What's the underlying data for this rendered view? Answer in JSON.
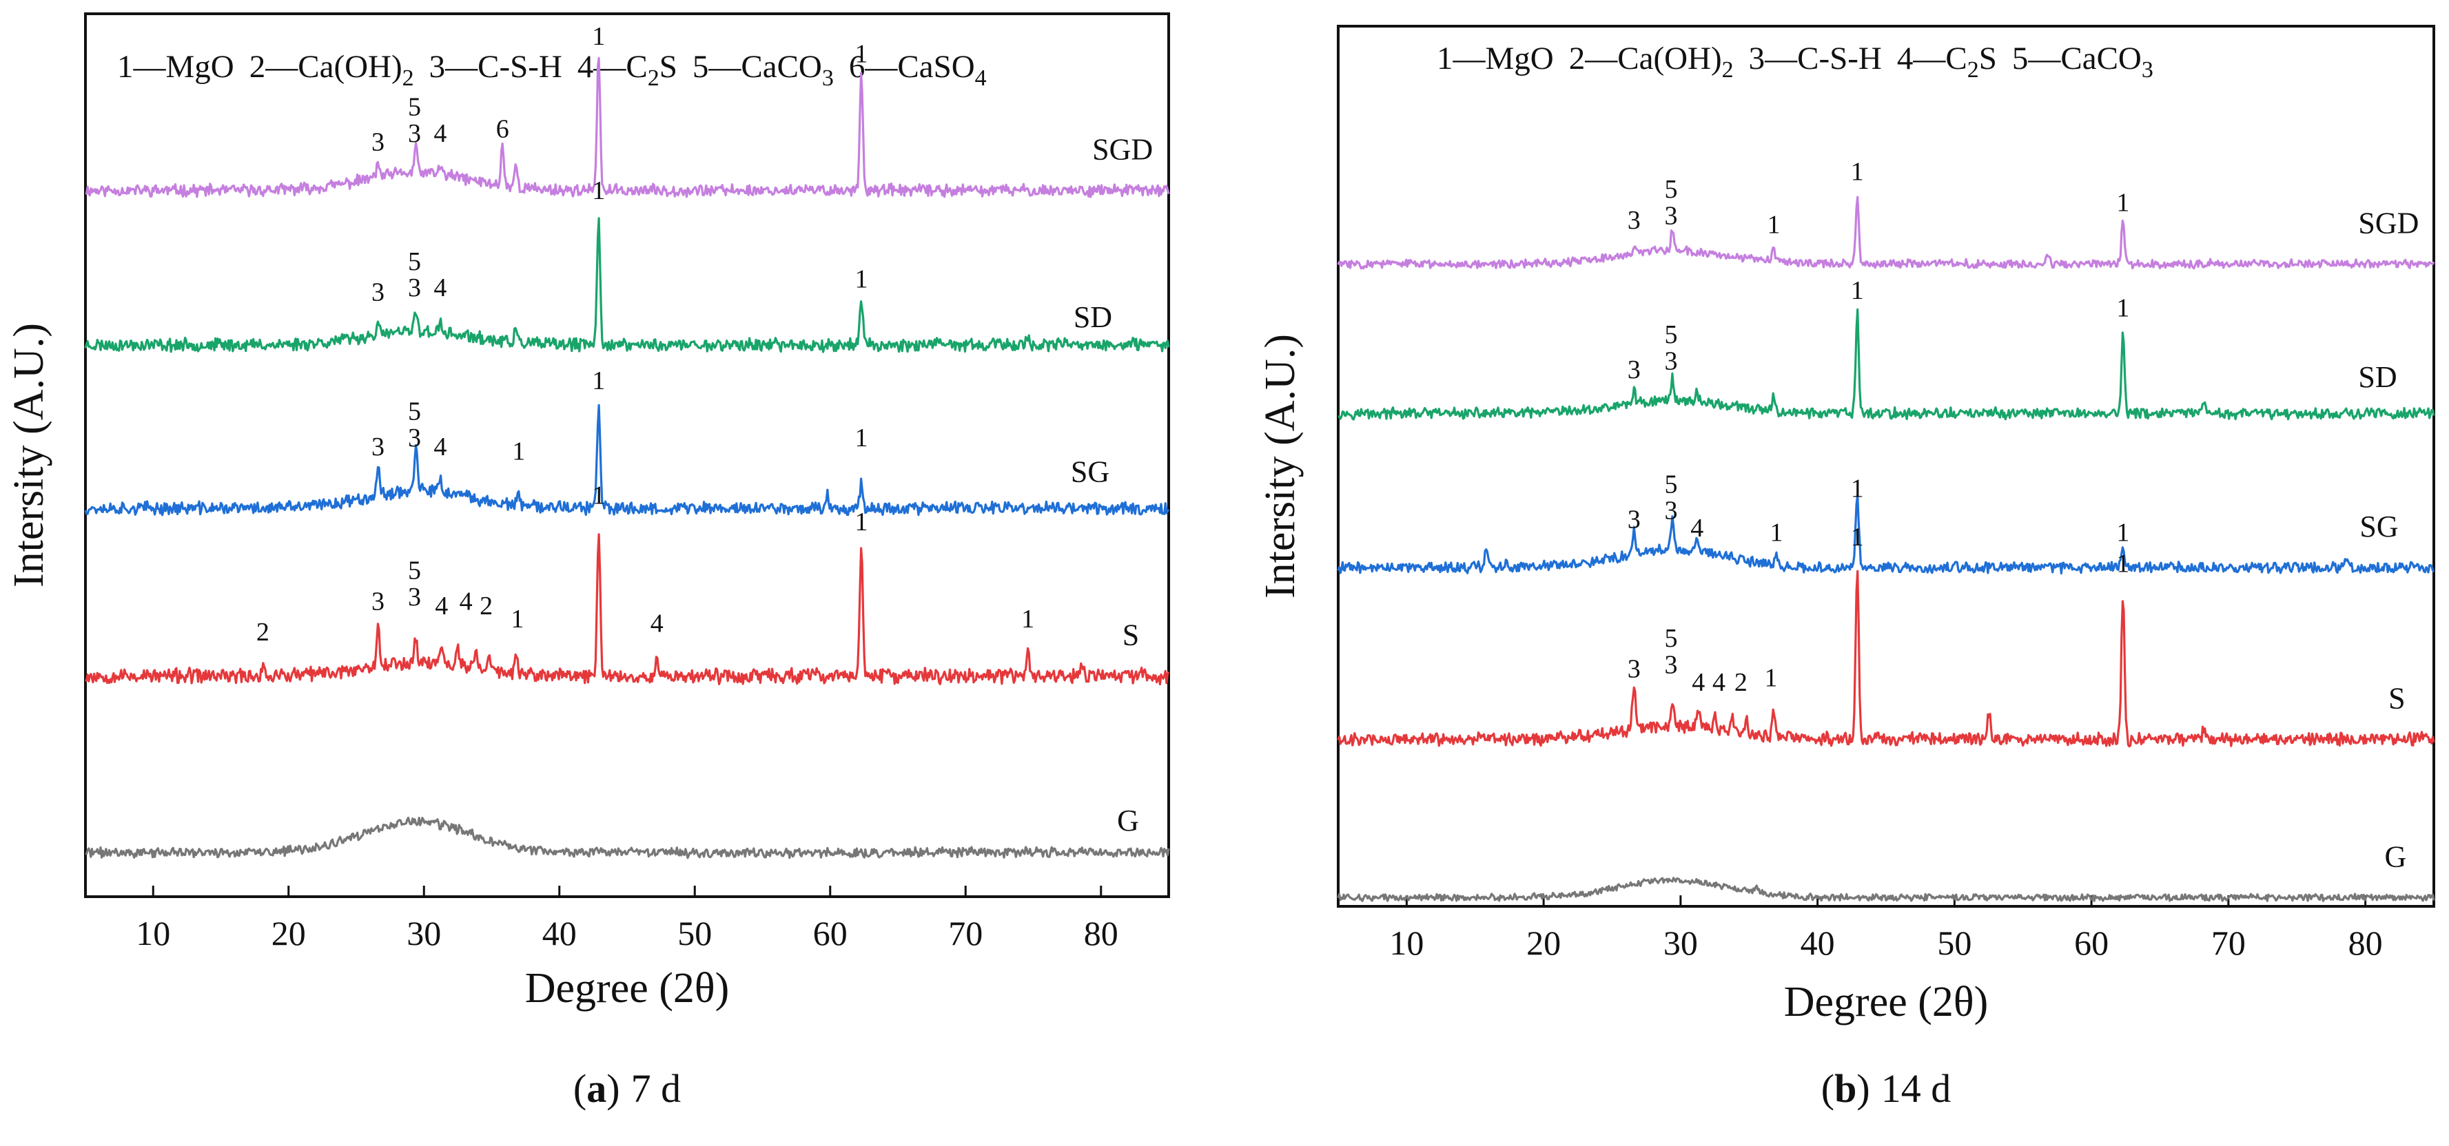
{
  "figure": {
    "background": "#ffffff",
    "axis_color": "#111111"
  },
  "colors": {
    "SGD": "#c57fdf",
    "SD": "#19a46a",
    "SG": "#1f6fd6",
    "S": "#e5383b",
    "G": "#777777"
  },
  "chart_data": [
    {
      "id": "a",
      "type": "line",
      "caption_bold": "a",
      "caption_rest": "7 d",
      "caption_open": "(",
      "caption_close": ")",
      "xlabel": "Degree (2θ)",
      "ylabel": "Intersity (A.U.)",
      "xlim": [
        5,
        85
      ],
      "ylim": [
        0,
        100
      ],
      "xticks": [
        10,
        20,
        30,
        40,
        50,
        60,
        70,
        80
      ],
      "legend": {
        "location": "top",
        "items": [
          {
            "n": "1",
            "sep": "—",
            "main": "MgO",
            "sub": ""
          },
          {
            "n": "2",
            "sep": "—",
            "main": "Ca(OH)",
            "sub": "2"
          },
          {
            "n": "3",
            "sep": "—",
            "main": "C-S-H",
            "sub": ""
          },
          {
            "n": "4",
            "sep": "—",
            "main": "C",
            "sub": "2",
            "tail": "S"
          },
          {
            "n": "5",
            "sep": "—",
            "main": "CaCO",
            "sub": "3"
          },
          {
            "n": "6",
            "sep": "—",
            "main": "CaSO",
            "sub": "4"
          }
        ]
      },
      "series": [
        {
          "name": "SGD",
          "baseline": 80.0,
          "hump": 2.0,
          "noise": 0.55,
          "seed": 11,
          "peaks": [
            [
              26.6,
              1.5
            ],
            [
              29.4,
              3.0
            ],
            [
              31.2,
              1.0
            ],
            [
              35.8,
              4.5
            ],
            [
              36.8,
              2.5
            ],
            [
              42.9,
              15.5
            ],
            [
              62.3,
              13.5
            ]
          ],
          "labels": [
            {
              "x": 26.6,
              "y": 84.5,
              "text": "3"
            },
            {
              "x": 29.3,
              "y": 88.5,
              "text": "5"
            },
            {
              "x": 29.3,
              "y": 85.5,
              "text": "3"
            },
            {
              "x": 31.2,
              "y": 85.5,
              "text": "4"
            },
            {
              "x": 35.8,
              "y": 86.0,
              "text": "6"
            },
            {
              "x": 42.9,
              "y": 96.5,
              "text": "1"
            },
            {
              "x": 62.3,
              "y": 94.5,
              "text": "1"
            },
            {
              "x": 81.6,
              "y": 83.5,
              "text": "SGD",
              "series_label": true
            }
          ]
        },
        {
          "name": "SD",
          "baseline": 62.5,
          "hump": 1.5,
          "noise": 0.6,
          "seed": 23,
          "peaks": [
            [
              26.6,
              1.0
            ],
            [
              29.4,
              2.5
            ],
            [
              31.2,
              1.0
            ],
            [
              36.8,
              1.5
            ],
            [
              42.9,
              14.5
            ],
            [
              62.3,
              5.5
            ],
            [
              74.6,
              1.0
            ]
          ],
          "labels": [
            {
              "x": 26.6,
              "y": 67.5,
              "text": "3"
            },
            {
              "x": 29.3,
              "y": 71.0,
              "text": "5"
            },
            {
              "x": 29.3,
              "y": 68.0,
              "text": "3"
            },
            {
              "x": 31.2,
              "y": 68.0,
              "text": "4"
            },
            {
              "x": 42.9,
              "y": 79.0,
              "text": "1"
            },
            {
              "x": 62.3,
              "y": 69.0,
              "text": "1"
            },
            {
              "x": 79.4,
              "y": 64.5,
              "text": "SD",
              "series_label": true
            }
          ]
        },
        {
          "name": "SG",
          "baseline": 44.0,
          "hump": 2.0,
          "noise": 0.6,
          "seed": 37,
          "peaks": [
            [
              26.6,
              3.0
            ],
            [
              29.4,
              5.0
            ],
            [
              31.2,
              1.5
            ],
            [
              37.0,
              1.0
            ],
            [
              40.0,
              1.0
            ],
            [
              42.9,
              11.5
            ],
            [
              59.8,
              1.5
            ],
            [
              62.3,
              3.0
            ]
          ],
          "labels": [
            {
              "x": 26.6,
              "y": 50.0,
              "text": "3"
            },
            {
              "x": 29.3,
              "y": 54.0,
              "text": "5"
            },
            {
              "x": 29.3,
              "y": 51.0,
              "text": "3"
            },
            {
              "x": 31.2,
              "y": 50.0,
              "text": "4"
            },
            {
              "x": 37.0,
              "y": 49.5,
              "text": "1"
            },
            {
              "x": 42.9,
              "y": 57.5,
              "text": "1"
            },
            {
              "x": 62.3,
              "y": 51.0,
              "text": "1"
            },
            {
              "x": 79.2,
              "y": 47.0,
              "text": "SG",
              "series_label": true
            }
          ]
        },
        {
          "name": "S",
          "baseline": 25.0,
          "hump": 1.5,
          "noise": 0.7,
          "seed": 53,
          "peaks": [
            [
              18.1,
              1.0
            ],
            [
              26.6,
              5.0
            ],
            [
              29.4,
              3.0
            ],
            [
              31.3,
              2.5
            ],
            [
              32.5,
              2.5
            ],
            [
              33.8,
              2.0
            ],
            [
              34.8,
              2.0
            ],
            [
              36.8,
              2.0
            ],
            [
              42.9,
              16.5
            ],
            [
              47.2,
              2.0
            ],
            [
              62.3,
              15.0
            ],
            [
              74.6,
              3.0
            ],
            [
              78.6,
              1.5
            ]
          ],
          "labels": [
            {
              "x": 18.1,
              "y": 29.0,
              "text": "2"
            },
            {
              "x": 26.6,
              "y": 32.5,
              "text": "3"
            },
            {
              "x": 29.3,
              "y": 36.0,
              "text": "5"
            },
            {
              "x": 29.3,
              "y": 33.0,
              "text": "3"
            },
            {
              "x": 31.3,
              "y": 32.0,
              "text": "4"
            },
            {
              "x": 33.1,
              "y": 32.5,
              "text": "4"
            },
            {
              "x": 34.6,
              "y": 32.0,
              "text": "2"
            },
            {
              "x": 36.9,
              "y": 30.5,
              "text": "1"
            },
            {
              "x": 42.9,
              "y": 44.5,
              "text": "1"
            },
            {
              "x": 47.2,
              "y": 30.0,
              "text": "4"
            },
            {
              "x": 62.3,
              "y": 41.5,
              "text": "1"
            },
            {
              "x": 74.6,
              "y": 30.5,
              "text": "1"
            },
            {
              "x": 82.2,
              "y": 28.5,
              "text": "S",
              "series_label": true
            }
          ]
        },
        {
          "name": "G",
          "baseline": 5.0,
          "hump": 3.5,
          "noise": 0.45,
          "seed": 71,
          "peaks": [],
          "labels": [
            {
              "x": 82.0,
              "y": 7.5,
              "text": "G",
              "series_label": true
            }
          ]
        }
      ]
    },
    {
      "id": "b",
      "type": "line",
      "caption_bold": "b",
      "caption_rest": "14 d",
      "caption_open": "(",
      "caption_close": ")",
      "xlabel": "Degree (2θ)",
      "ylabel": "Intersity (A.U.)",
      "xlim": [
        5,
        85
      ],
      "ylim": [
        0,
        100
      ],
      "xticks": [
        10,
        20,
        30,
        40,
        50,
        60,
        70,
        80
      ],
      "legend": {
        "location": "top",
        "items": [
          {
            "n": "1",
            "sep": "—",
            "main": "MgO",
            "sub": ""
          },
          {
            "n": "2",
            "sep": "—",
            "main": "Ca(OH)",
            "sub": "2"
          },
          {
            "n": "3",
            "sep": "—",
            "main": "C-S-H",
            "sub": ""
          },
          {
            "n": "4",
            "sep": "—",
            "main": "C",
            "sub": "2",
            "tail": "S"
          },
          {
            "n": "5",
            "sep": "—",
            "main": "CaCO",
            "sub": "3"
          }
        ]
      },
      "series": [
        {
          "name": "SGD",
          "baseline": 73.0,
          "hump": 1.5,
          "noise": 0.4,
          "seed": 83,
          "peaks": [
            [
              26.6,
              1.0
            ],
            [
              29.4,
              2.5
            ],
            [
              36.8,
              1.5
            ],
            [
              42.9,
              7.5
            ],
            [
              56.8,
              1.0
            ],
            [
              62.3,
              5.0
            ]
          ],
          "labels": [
            {
              "x": 26.6,
              "y": 77.0,
              "text": "3"
            },
            {
              "x": 29.3,
              "y": 80.5,
              "text": "5"
            },
            {
              "x": 29.3,
              "y": 77.5,
              "text": "3"
            },
            {
              "x": 36.8,
              "y": 76.5,
              "text": "1"
            },
            {
              "x": 42.9,
              "y": 82.5,
              "text": "1"
            },
            {
              "x": 62.3,
              "y": 79.0,
              "text": "1"
            },
            {
              "x": 81.7,
              "y": 76.5,
              "text": "SGD",
              "series_label": true
            }
          ]
        },
        {
          "name": "SD",
          "baseline": 56.0,
          "hump": 1.5,
          "noise": 0.5,
          "seed": 97,
          "peaks": [
            [
              26.6,
              1.5
            ],
            [
              29.4,
              2.5
            ],
            [
              31.2,
              1.0
            ],
            [
              36.8,
              1.5
            ],
            [
              42.9,
              11.5
            ],
            [
              62.3,
              9.0
            ],
            [
              68.2,
              1.0
            ]
          ],
          "labels": [
            {
              "x": 26.6,
              "y": 60.0,
              "text": "3"
            },
            {
              "x": 29.3,
              "y": 64.0,
              "text": "5"
            },
            {
              "x": 29.3,
              "y": 61.0,
              "text": "3"
            },
            {
              "x": 42.9,
              "y": 69.0,
              "text": "1"
            },
            {
              "x": 62.3,
              "y": 67.0,
              "text": "1"
            },
            {
              "x": 80.9,
              "y": 59.0,
              "text": "SD",
              "series_label": true
            }
          ]
        },
        {
          "name": "SG",
          "baseline": 38.5,
          "hump": 2.0,
          "noise": 0.5,
          "seed": 109,
          "peaks": [
            [
              15.8,
              2.0
            ],
            [
              17.3,
              1.0
            ],
            [
              26.6,
              2.5
            ],
            [
              29.4,
              3.5
            ],
            [
              31.2,
              1.0
            ],
            [
              37.0,
              1.0
            ],
            [
              42.9,
              8.5
            ],
            [
              62.3,
              2.0
            ],
            [
              78.6,
              1.0
            ]
          ],
          "labels": [
            {
              "x": 26.6,
              "y": 43.0,
              "text": "3"
            },
            {
              "x": 29.3,
              "y": 47.0,
              "text": "5"
            },
            {
              "x": 29.3,
              "y": 44.0,
              "text": "3"
            },
            {
              "x": 31.2,
              "y": 42.0,
              "text": "4"
            },
            {
              "x": 37.0,
              "y": 41.5,
              "text": "1"
            },
            {
              "x": 42.9,
              "y": 46.5,
              "text": "1"
            },
            {
              "x": 62.3,
              "y": 41.5,
              "text": "1"
            },
            {
              "x": 81.0,
              "y": 42.0,
              "text": "SG",
              "series_label": true
            }
          ]
        },
        {
          "name": "S",
          "baseline": 19.0,
          "hump": 1.5,
          "noise": 0.6,
          "seed": 127,
          "peaks": [
            [
              26.6,
              5.0
            ],
            [
              29.4,
              3.0
            ],
            [
              31.3,
              2.0
            ],
            [
              32.5,
              2.0
            ],
            [
              33.8,
              1.5
            ],
            [
              34.8,
              1.5
            ],
            [
              36.8,
              2.5
            ],
            [
              42.9,
              19.5
            ],
            [
              52.5,
              3.0
            ],
            [
              62.3,
              16.5
            ],
            [
              68.2,
              1.0
            ]
          ],
          "labels": [
            {
              "x": 26.6,
              "y": 26.0,
              "text": "3"
            },
            {
              "x": 29.3,
              "y": 29.5,
              "text": "5"
            },
            {
              "x": 29.3,
              "y": 26.5,
              "text": "3"
            },
            {
              "x": 31.3,
              "y": 24.5,
              "text": "4"
            },
            {
              "x": 32.8,
              "y": 24.5,
              "text": "4"
            },
            {
              "x": 34.4,
              "y": 24.5,
              "text": "2"
            },
            {
              "x": 36.6,
              "y": 25.0,
              "text": "1"
            },
            {
              "x": 42.9,
              "y": 41.0,
              "text": "1"
            },
            {
              "x": 62.3,
              "y": 38.0,
              "text": "1"
            },
            {
              "x": 82.3,
              "y": 22.5,
              "text": "S",
              "series_label": true
            }
          ]
        },
        {
          "name": "G",
          "baseline": 1.0,
          "hump": 2.0,
          "noise": 0.3,
          "seed": 139,
          "peaks": [
            [
              35.5,
              0.8
            ]
          ],
          "labels": [
            {
              "x": 82.2,
              "y": 4.5,
              "text": "G",
              "series_label": true
            }
          ]
        }
      ]
    }
  ]
}
